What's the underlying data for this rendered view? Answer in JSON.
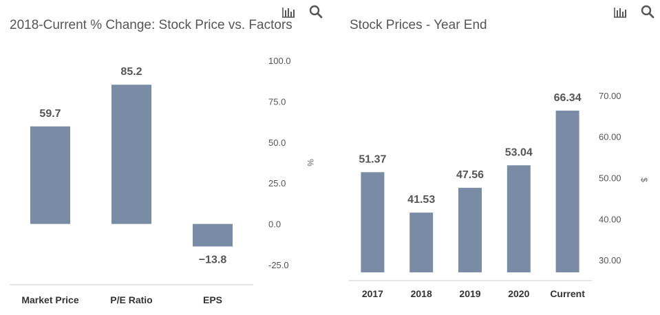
{
  "charts": {
    "left": {
      "title": "2018-Current % Change: Stock Price vs. Factors",
      "toolbar_icons": [
        "bar-chart-icon",
        "search-icon"
      ]
    },
    "right": {
      "title": "Stock Prices - Year End",
      "toolbar_icons": [
        "bar-chart-icon",
        "search-icon"
      ]
    }
  },
  "chart_data": [
    {
      "type": "bar",
      "title": "2018-Current % Change: Stock Price vs. Factors",
      "categories": [
        "Market Price",
        "P/E Ratio",
        "EPS"
      ],
      "values": [
        59.7,
        85.2,
        -13.8
      ],
      "value_labels": [
        "59.7",
        "85.2",
        "−13.8"
      ],
      "ylabel": "%",
      "ylim": [
        -25,
        100
      ],
      "yticks": [
        -25,
        0,
        25,
        50,
        75,
        100
      ],
      "ytick_labels": [
        "-25.0",
        "0.0",
        "25.0",
        "50.0",
        "75.0",
        "100.0"
      ],
      "y_axis_side": "right",
      "color": "#7a8ba6"
    },
    {
      "type": "bar",
      "title": "Stock Prices - Year End",
      "categories": [
        "2017",
        "2018",
        "2019",
        "2020",
        "Current"
      ],
      "values": [
        51.37,
        41.53,
        47.56,
        53.04,
        66.34
      ],
      "value_labels": [
        "51.37",
        "41.53",
        "47.56",
        "53.04",
        "66.34"
      ],
      "ylabel": "$",
      "ylim": [
        27,
        72
      ],
      "yticks": [
        30,
        40,
        50,
        60,
        70
      ],
      "ytick_labels": [
        "30.00",
        "40.00",
        "50.00",
        "60.00",
        "70.00"
      ],
      "y_axis_side": "right",
      "color": "#7a8ba6"
    }
  ]
}
